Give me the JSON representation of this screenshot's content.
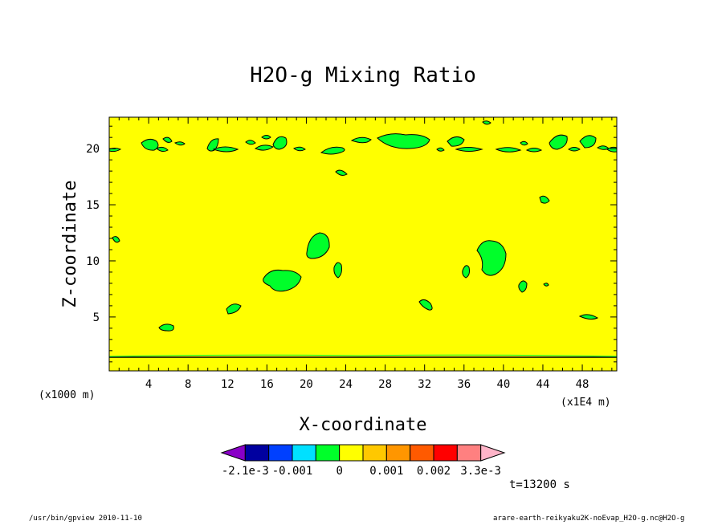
{
  "chart_data": {
    "type": "heatmap",
    "title": "H2O-g Mixing Ratio",
    "xlabel": "X-coordinate",
    "ylabel": "Z-coordinate",
    "x_unit_left": "(x1000 m)",
    "x_unit_right": "(x1E4 m)",
    "xlim": [
      0,
      51.5
    ],
    "ylim": [
      0.2,
      22.8
    ],
    "xticks": [
      "4",
      "8",
      "12",
      "16",
      "20",
      "24",
      "28",
      "32",
      "36",
      "40",
      "44",
      "48"
    ],
    "yticks": [
      "5",
      "10",
      "15",
      "20"
    ],
    "background_level_color": "#ffff00",
    "contour_level_color": "#00ff2a",
    "colorbar": {
      "colors": [
        "#8a00c8",
        "#0000a0",
        "#0040ff",
        "#00e0ff",
        "#00ff2a",
        "#ffff00",
        "#ffc800",
        "#ff9600",
        "#ff5a00",
        "#ff0000",
        "#ff8080",
        "#ffb4c8"
      ],
      "labels": [
        "-2.1e-3",
        "-0.001",
        "0",
        "0.001",
        "0.002",
        "3.3e-3"
      ]
    },
    "time_label": "t=13200 s"
  },
  "footer": {
    "left": "/usr/bin/gpview  2010-11-10",
    "right": "arare-earth-reikyaku2K-noEvap_H2O-g.nc@H2O-g"
  }
}
